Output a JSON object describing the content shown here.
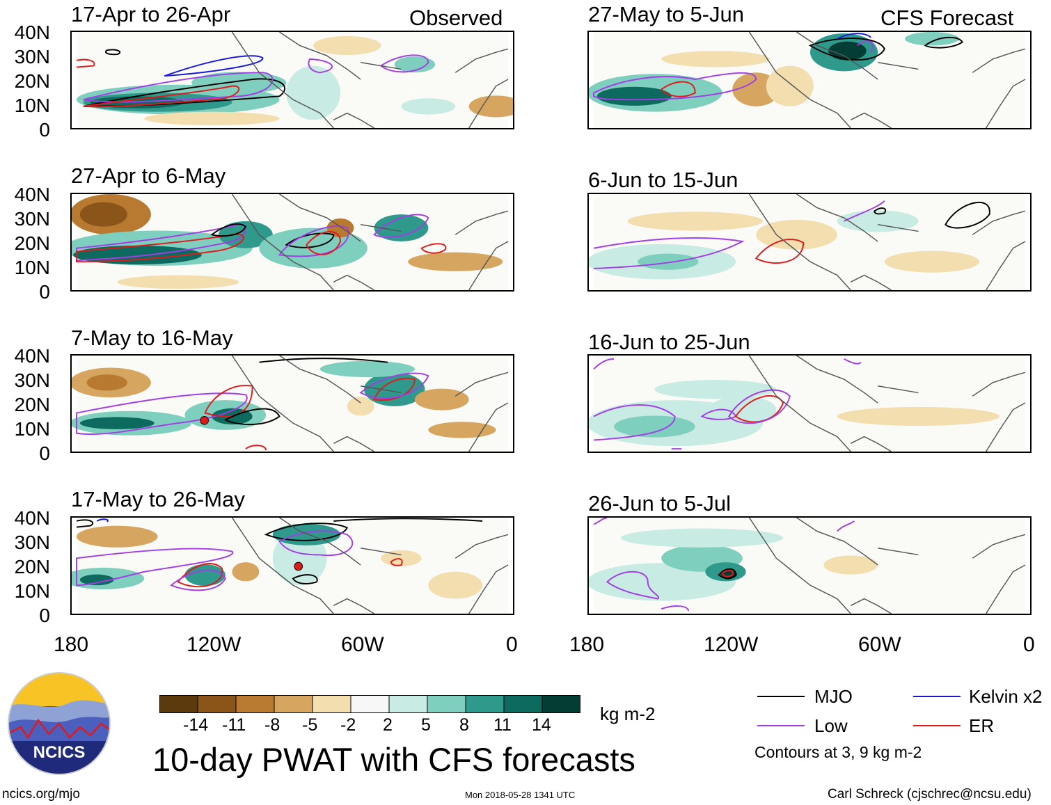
{
  "header": {
    "left_label": "Observed",
    "right_label": "CFS Forecast"
  },
  "panels": [
    {
      "title": "17-Apr to 26-Apr",
      "column": "observed"
    },
    {
      "title": "27-Apr to 6-May",
      "column": "observed"
    },
    {
      "title": "7-May to 16-May",
      "column": "observed"
    },
    {
      "title": "17-May to 26-May",
      "column": "observed"
    },
    {
      "title": "27-May to 5-Jun",
      "column": "forecast"
    },
    {
      "title": "6-Jun to 15-Jun",
      "column": "forecast"
    },
    {
      "title": "16-Jun to 25-Jun",
      "column": "forecast"
    },
    {
      "title": "26-Jun to 5-Jul",
      "column": "forecast"
    }
  ],
  "axes": {
    "lat_ticks": [
      "40N",
      "30N",
      "20N",
      "10N",
      "0"
    ],
    "lon_ticks": [
      "180",
      "120W",
      "60W",
      "0"
    ]
  },
  "colorbar": {
    "ticks": [
      "-14",
      "-11",
      "-8",
      "-5",
      "-2",
      "2",
      "5",
      "8",
      "11",
      "14"
    ],
    "units": "kg m-2",
    "colors": [
      "#5c3a0e",
      "#8b5418",
      "#b77a30",
      "#d6a660",
      "#f3deb0",
      "#f7f7f7",
      "#c8ebe3",
      "#7fcfbf",
      "#2f9a8c",
      "#0c6b5e",
      "#033d33"
    ]
  },
  "legend": {
    "items": [
      {
        "label": "MJO",
        "color": "#000000"
      },
      {
        "label": "Kelvin x2",
        "color": "#1a1ad6"
      },
      {
        "label": "Low",
        "color": "#a23de8"
      },
      {
        "label": "ER",
        "color": "#e01a1a"
      }
    ],
    "note": "Contours at 3, 9 kg m-2"
  },
  "main_title": "10-day PWAT with CFS forecasts",
  "logo": {
    "text": "NCICS"
  },
  "footer": {
    "url": "ncics.org/mjo",
    "timestamp": "Mon 2018-05-28 1341 UTC",
    "credit": "Carl Schreck (cjschrec@ncsu.edu)"
  }
}
